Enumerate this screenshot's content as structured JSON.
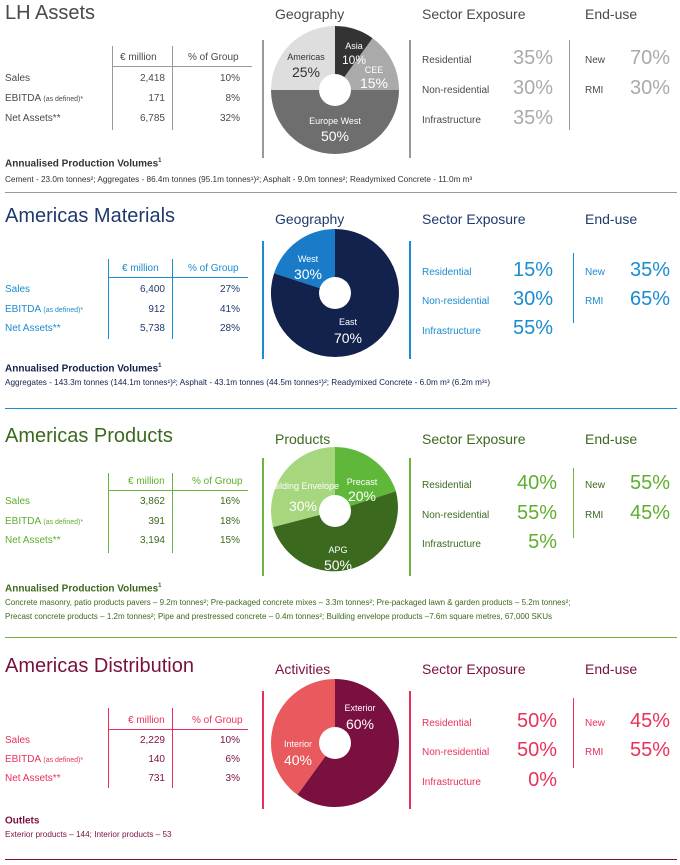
{
  "sections": [
    {
      "title": "LH Assets",
      "left_heading": "Geography",
      "sector_heading": "Sector Exposure",
      "enduse_heading": "End-use",
      "table": {
        "col1": "€ million",
        "col2": "% of Group",
        "rows": [
          {
            "label": "Sales",
            "suffix": "",
            "value": "2,418",
            "pct": "10%"
          },
          {
            "label": "EBITDA",
            "suffix": "(as defined)*",
            "value": "171",
            "pct": "8%"
          },
          {
            "label": "Net Assets**",
            "suffix": "",
            "value": "6,785",
            "pct": "32%"
          }
        ]
      },
      "pie": [
        {
          "label": "Americas",
          "value": "25%"
        },
        {
          "label": "Asia",
          "value": "10%"
        },
        {
          "label": "CEE",
          "value": "15%"
        },
        {
          "label": "Europe West",
          "value": "50%"
        }
      ],
      "sectors": [
        {
          "label": "Residential",
          "value": "35%"
        },
        {
          "label": "Non-residential",
          "value": "30%"
        },
        {
          "label": "Infrastructure",
          "value": "35%"
        }
      ],
      "enduse": [
        {
          "label": "New",
          "value": "70%"
        },
        {
          "label": "RMI",
          "value": "30%"
        }
      ],
      "volumes_title": "Annualised Production Volumes",
      "volumes_title_sup": "1",
      "volumes_lines": [
        "Cement - 23.0m tonnes²; Aggregates - 86.4m tonnes (95.1m tonnes¹)²; Asphalt - 9.0m tonnes²; Readymixed Concrete - 11.0m m³"
      ],
      "colors": {
        "main": "#555555",
        "accent": "#999999",
        "pct": "#aaaaaa"
      }
    },
    {
      "title": "Americas Materials",
      "left_heading": "Geography",
      "sector_heading": "Sector Exposure",
      "enduse_heading": "End-use",
      "table": {
        "col1": "€ million",
        "col2": "% of Group",
        "rows": [
          {
            "label": "Sales",
            "suffix": "",
            "value": "6,400",
            "pct": "27%"
          },
          {
            "label": "EBITDA",
            "suffix": "(as defined)*",
            "value": "912",
            "pct": "41%"
          },
          {
            "label": "Net Assets**",
            "suffix": "",
            "value": "5,738",
            "pct": "28%"
          }
        ]
      },
      "pie": [
        {
          "label": "West",
          "value": "30%"
        },
        {
          "label": "East",
          "value": "70%"
        }
      ],
      "sectors": [
        {
          "label": "Residential",
          "value": "15%"
        },
        {
          "label": "Non-residential",
          "value": "30%"
        },
        {
          "label": "Infrastructure",
          "value": "55%"
        }
      ],
      "enduse": [
        {
          "label": "New",
          "value": "35%"
        },
        {
          "label": "RMI",
          "value": "65%"
        }
      ],
      "volumes_title": "Annualised Production Volumes",
      "volumes_title_sup": "1",
      "volumes_lines": [
        "Aggregates - 143.3m tonnes (144.1m tonnes¹)²; Asphalt - 43.1m tonnes (44.5m tonnes¹)²; Readymixed Concrete - 6.0m m³ (6.2m m³¹)"
      ],
      "colors": {
        "main": "#1f3a6e",
        "accent": "#1a8ccf",
        "pct": "#1a8ccf"
      }
    },
    {
      "title": "Americas Products",
      "left_heading": "Products",
      "sector_heading": "Sector Exposure",
      "enduse_heading": "End-use",
      "table": {
        "col1": "€ million",
        "col2": "% of Group",
        "rows": [
          {
            "label": "Sales",
            "suffix": "",
            "value": "3,862",
            "pct": "16%"
          },
          {
            "label": "EBITDA",
            "suffix": "(as defined)*",
            "value": "391",
            "pct": "18%"
          },
          {
            "label": "Net Assets**",
            "suffix": "",
            "value": "3,194",
            "pct": "15%"
          }
        ]
      },
      "pie": [
        {
          "label": "Building Envelope",
          "value": "30%"
        },
        {
          "label": "Precast",
          "value": "20%"
        },
        {
          "label": "APG",
          "value": "50%"
        }
      ],
      "sectors": [
        {
          "label": "Residential",
          "value": "40%"
        },
        {
          "label": "Non-residential",
          "value": "55%"
        },
        {
          "label": "Infrastructure",
          "value": "5%"
        }
      ],
      "enduse": [
        {
          "label": "New",
          "value": "55%"
        },
        {
          "label": "RMI",
          "value": "45%"
        }
      ],
      "volumes_title": "Annualised Production Volumes",
      "volumes_title_sup": "1",
      "volumes_lines": [
        "Concrete masonry, patio products pavers – 9.2m tonnes²; Pre-packaged concrete mixes – 3.3m tonnes²; Pre-packaged lawn & garden products – 5.2m tonnes²;",
        "Precast concrete products – 1.2m tonnes²; Pipe and prestressed concrete – 0.4m tonnes²; Building envelope products –7.6m square metres, 67,000 SKUs"
      ],
      "colors": {
        "main": "#3b6a1e",
        "accent": "#6fb33f",
        "pct": "#5fae2e"
      }
    },
    {
      "title": "Americas Distribution",
      "left_heading": "Activities",
      "sector_heading": "Sector Exposure",
      "enduse_heading": "End-use",
      "table": {
        "col1": "€ million",
        "col2": "% of Group",
        "rows": [
          {
            "label": "Sales",
            "suffix": "",
            "value": "2,229",
            "pct": "10%"
          },
          {
            "label": "EBITDA",
            "suffix": "(as defined)*",
            "value": "140",
            "pct": "6%"
          },
          {
            "label": "Net Assets**",
            "suffix": "",
            "value": "731",
            "pct": "3%"
          }
        ]
      },
      "pie": [
        {
          "label": "Exterior",
          "value": "60%"
        },
        {
          "label": "Interior",
          "value": "40%"
        }
      ],
      "sectors": [
        {
          "label": "Residential",
          "value": "50%"
        },
        {
          "label": "Non-residential",
          "value": "50%"
        },
        {
          "label": "Infrastructure",
          "value": "0%"
        }
      ],
      "enduse": [
        {
          "label": "New",
          "value": "45%"
        },
        {
          "label": "RMI",
          "value": "55%"
        }
      ],
      "volumes_title": "Outlets",
      "volumes_title_sup": "",
      "volumes_lines": [
        "Exterior products – 144; Interior products – 53"
      ],
      "colors": {
        "main": "#7a1040",
        "accent": "#e8315a",
        "pct": "#e8315a"
      }
    }
  ]
}
